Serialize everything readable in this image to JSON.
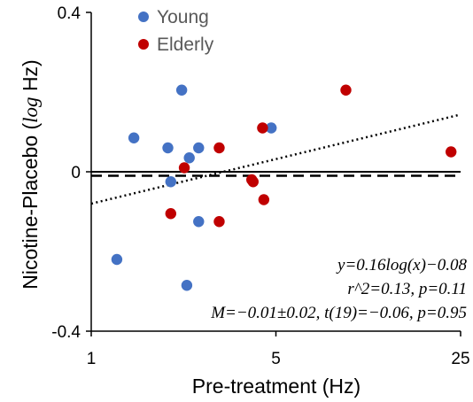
{
  "chart_data": {
    "type": "scatter",
    "xlabel": "Pre-treatment (Hz)",
    "ylabel_prefix": "Nicotine-Placebo (",
    "ylabel_log": "log",
    "ylabel_suffix": " Hz)",
    "x_scale": "log",
    "xlim": [
      1,
      25
    ],
    "ylim": [
      -0.4,
      0.4
    ],
    "x_ticks": [
      1,
      5,
      25
    ],
    "x_tick_labels": [
      "1",
      "5",
      "25"
    ],
    "y_ticks": [
      -0.4,
      0,
      0.4
    ],
    "y_tick_labels": [
      "-0.4",
      "0",
      "0.4"
    ],
    "legend_position": "top-left",
    "series": [
      {
        "name": "Young",
        "color": "#4472C4",
        "points": [
          {
            "x": 1.25,
            "y": -0.22
          },
          {
            "x": 1.45,
            "y": 0.085
          },
          {
            "x": 1.95,
            "y": 0.06
          },
          {
            "x": 2.0,
            "y": -0.025
          },
          {
            "x": 2.2,
            "y": 0.205
          },
          {
            "x": 2.3,
            "y": -0.285
          },
          {
            "x": 2.35,
            "y": 0.035
          },
          {
            "x": 2.55,
            "y": 0.06
          },
          {
            "x": 2.55,
            "y": -0.125
          },
          {
            "x": 4.8,
            "y": 0.11
          }
        ]
      },
      {
        "name": "Elderly",
        "color": "#C00000",
        "points": [
          {
            "x": 2.0,
            "y": -0.105
          },
          {
            "x": 2.25,
            "y": 0.01
          },
          {
            "x": 3.05,
            "y": 0.06
          },
          {
            "x": 3.05,
            "y": -0.125
          },
          {
            "x": 4.05,
            "y": -0.02
          },
          {
            "x": 4.1,
            "y": -0.025
          },
          {
            "x": 4.45,
            "y": 0.11
          },
          {
            "x": 4.5,
            "y": -0.07
          },
          {
            "x": 9.2,
            "y": 0.205
          },
          {
            "x": 23,
            "y": 0.05
          }
        ]
      }
    ],
    "fit_line": {
      "slope": 0.16,
      "intercept": -0.08,
      "style": "dotted",
      "x_range": [
        1,
        25
      ]
    },
    "mean_line": {
      "y": -0.01,
      "style": "dashed"
    },
    "zero_line": {
      "y": 0,
      "style": "solid"
    },
    "annotations": [
      "y=0.16log(x)−0.08",
      "r^2=0.13, p=0.11",
      "M=−0.01±0.02, t(19)=−0.06, p=0.95"
    ]
  }
}
